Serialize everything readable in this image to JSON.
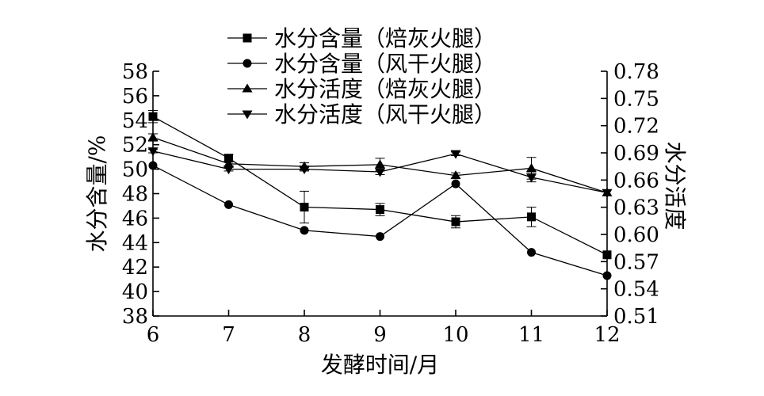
{
  "chart_data": {
    "type": "line",
    "title": "",
    "xlabel": "发酵时间/月",
    "ylabel": "水分含量/%",
    "y2label": "水分活度",
    "x": [
      6,
      7,
      8,
      9,
      10,
      11,
      12
    ],
    "xlim": [
      6,
      12
    ],
    "ylim": [
      38,
      58
    ],
    "y2lim": [
      0.51,
      0.78
    ],
    "x_ticks": [
      "6",
      "7",
      "8",
      "9",
      "10",
      "11",
      "12"
    ],
    "y_ticks": [
      "38",
      "40",
      "42",
      "44",
      "46",
      "48",
      "50",
      "52",
      "54",
      "56",
      "58"
    ],
    "y2_ticks": [
      "0.51",
      "0.54",
      "0.57",
      "0.60",
      "0.63",
      "0.66",
      "0.69",
      "0.72",
      "0.75",
      "0.78"
    ],
    "grid": false,
    "legend_position": "top",
    "series": [
      {
        "name": "水分含量（焙灰火腿）",
        "axis": "left",
        "marker": "square",
        "values": [
          54.3,
          50.9,
          46.9,
          46.7,
          45.7,
          46.1,
          43.0
        ],
        "errors": [
          0.5,
          0.3,
          1.3,
          0.5,
          0.5,
          0.8,
          0.0
        ]
      },
      {
        "name": "水分含量（风干火腿）",
        "axis": "left",
        "marker": "circle",
        "values": [
          50.3,
          47.1,
          45.0,
          44.5,
          48.8,
          43.2,
          41.3
        ],
        "errors": [
          0.0,
          0.0,
          0.0,
          0.0,
          0.0,
          0.0,
          0.0
        ]
      },
      {
        "name": "水分活度（焙灰火腿）",
        "axis": "right",
        "marker": "triangle-up",
        "values": [
          0.707,
          0.678,
          0.675,
          0.677,
          0.665,
          0.673,
          0.646
        ],
        "errors": [
          0.004,
          0.003,
          0.004,
          0.007,
          0.003,
          0.012,
          0.0
        ]
      },
      {
        "name": "水分活度（风干火腿）",
        "axis": "right",
        "marker": "triangle-down",
        "values": [
          0.692,
          0.672,
          0.672,
          0.669,
          0.689,
          0.663,
          0.646
        ],
        "errors": [
          0.002,
          0.002,
          0.002,
          0.003,
          0.002,
          0.005,
          0.0
        ]
      }
    ]
  }
}
